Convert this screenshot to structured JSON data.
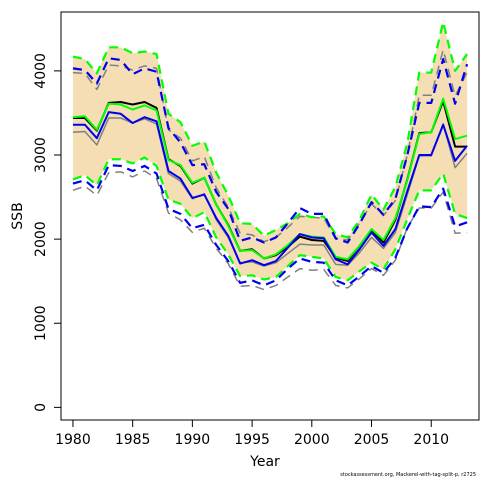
{
  "chart_data": {
    "type": "line",
    "title": "",
    "xlabel": "Year",
    "ylabel": "SSB",
    "xlim": [
      1979,
      2014
    ],
    "ylim": [
      -150,
      4700
    ],
    "xticks": [
      1980,
      1985,
      1990,
      1995,
      2000,
      2005,
      2010
    ],
    "yticks": [
      0,
      1000,
      2000,
      3000,
      4000
    ],
    "x": [
      1980,
      1981,
      1982,
      1983,
      1984,
      1985,
      1986,
      1987,
      1988,
      1989,
      1990,
      1991,
      1992,
      1993,
      1994,
      1995,
      1996,
      1997,
      1998,
      1999,
      2000,
      2001,
      2002,
      2003,
      2004,
      2005,
      2006,
      2007,
      2008,
      2009,
      2010,
      2011,
      2012,
      2013
    ],
    "band": {
      "color": "#f5deb3",
      "lower": [
        2710,
        2760,
        2640,
        2950,
        2950,
        2900,
        2970,
        2870,
        2470,
        2420,
        2250,
        2320,
        2020,
        1820,
        1560,
        1570,
        1520,
        1550,
        1680,
        1810,
        1790,
        1770,
        1550,
        1510,
        1620,
        1720,
        1640,
        1880,
        2240,
        2580,
        2580,
        2780,
        2300,
        2250
      ],
      "upper": [
        4170,
        4140,
        3970,
        4280,
        4280,
        4210,
        4230,
        4200,
        3490,
        3390,
        3110,
        3160,
        2790,
        2520,
        2190,
        2180,
        2040,
        2110,
        2190,
        2300,
        2260,
        2270,
        2060,
        2020,
        2230,
        2530,
        2350,
        2620,
        3140,
        3980,
        3980,
        4580,
        4000,
        4200
      ]
    },
    "series": [
      {
        "color": "#808080",
        "width": 1.5,
        "dash": false,
        "values": [
          3270,
          3280,
          3120,
          3440,
          3440,
          3380,
          3430,
          3370,
          2780,
          2690,
          2480,
          2540,
          2230,
          2020,
          1720,
          1730,
          1680,
          1720,
          1830,
          1940,
          1930,
          1930,
          1700,
          1690,
          1840,
          2020,
          1890,
          2080,
          2530,
          2990,
          2990,
          3370,
          2850,
          3020
        ]
      },
      {
        "color": "#808080",
        "width": 1.5,
        "dash": true,
        "values": [
          2580,
          2630,
          2520,
          2790,
          2800,
          2740,
          2810,
          2720,
          2310,
          2230,
          2080,
          2130,
          1890,
          1710,
          1440,
          1450,
          1400,
          1450,
          1550,
          1650,
          1630,
          1640,
          1450,
          1420,
          1530,
          1650,
          1570,
          1750,
          2140,
          2370,
          2370,
          2560,
          2070,
          2080
        ]
      },
      {
        "color": "#808080",
        "width": 1.5,
        "dash": true,
        "values": [
          3980,
          3970,
          3780,
          4070,
          4060,
          4010,
          4060,
          4030,
          3300,
          3200,
          2930,
          2980,
          2610,
          2380,
          2070,
          2050,
          1970,
          2020,
          2140,
          2270,
          2260,
          2250,
          2000,
          1990,
          2190,
          2420,
          2280,
          2460,
          3000,
          3710,
          3710,
          4250,
          3700,
          3980
        ]
      },
      {
        "color": "#000000",
        "width": 2,
        "dash": false,
        "values": [
          3440,
          3440,
          3290,
          3620,
          3630,
          3600,
          3630,
          3560,
          2950,
          2870,
          2660,
          2730,
          2410,
          2170,
          1860,
          1880,
          1770,
          1810,
          1910,
          2030,
          1990,
          1980,
          1780,
          1740,
          1920,
          2110,
          1960,
          2230,
          2710,
          3260,
          3270,
          3640,
          3100,
          3100
        ]
      },
      {
        "color": "#00ff00",
        "width": 2,
        "dash": false,
        "values": [
          3450,
          3460,
          3300,
          3610,
          3600,
          3540,
          3590,
          3530,
          2940,
          2880,
          2670,
          2730,
          2410,
          2160,
          1860,
          1870,
          1770,
          1820,
          1930,
          2060,
          2030,
          2020,
          1790,
          1760,
          1920,
          2120,
          1990,
          2250,
          2700,
          3250,
          3270,
          3670,
          3190,
          3230
        ]
      },
      {
        "color": "#00ff00",
        "width": 2.2,
        "dash": true,
        "values": [
          2710,
          2760,
          2640,
          2950,
          2950,
          2900,
          2970,
          2870,
          2470,
          2420,
          2250,
          2320,
          2020,
          1820,
          1560,
          1570,
          1520,
          1550,
          1680,
          1810,
          1790,
          1770,
          1550,
          1510,
          1620,
          1720,
          1640,
          1880,
          2240,
          2580,
          2580,
          2780,
          2300,
          2250
        ]
      },
      {
        "color": "#00ff00",
        "width": 2.2,
        "dash": true,
        "values": [
          4170,
          4140,
          3970,
          4280,
          4280,
          4210,
          4230,
          4200,
          3490,
          3390,
          3110,
          3160,
          2790,
          2520,
          2190,
          2180,
          2040,
          2110,
          2190,
          2300,
          2260,
          2270,
          2060,
          2020,
          2230,
          2530,
          2350,
          2620,
          3140,
          3980,
          3980,
          4580,
          4000,
          4200
        ]
      },
      {
        "color": "#0000ee",
        "width": 2,
        "dash": false,
        "values": [
          3360,
          3360,
          3200,
          3510,
          3490,
          3380,
          3450,
          3400,
          2810,
          2720,
          2490,
          2530,
          2250,
          2040,
          1710,
          1750,
          1690,
          1740,
          1900,
          2060,
          2020,
          2010,
          1760,
          1700,
          1880,
          2080,
          1920,
          2120,
          2570,
          3000,
          3000,
          3360,
          2930,
          3110
        ]
      },
      {
        "color": "#0000ee",
        "width": 2.2,
        "dash": true,
        "values": [
          2660,
          2700,
          2580,
          2880,
          2870,
          2810,
          2870,
          2780,
          2360,
          2300,
          2130,
          2170,
          1930,
          1740,
          1480,
          1510,
          1450,
          1510,
          1650,
          1770,
          1730,
          1720,
          1510,
          1450,
          1560,
          1680,
          1600,
          1780,
          2130,
          2390,
          2380,
          2600,
          2150,
          2200
        ]
      },
      {
        "color": "#0000ee",
        "width": 2.2,
        "dash": true,
        "values": [
          4030,
          4010,
          3850,
          4150,
          4130,
          3960,
          4030,
          3990,
          3320,
          3150,
          2880,
          2890,
          2560,
          2360,
          1980,
          2020,
          1960,
          2020,
          2190,
          2370,
          2300,
          2300,
          2010,
          1960,
          2180,
          2440,
          2290,
          2480,
          3000,
          3620,
          3620,
          4140,
          3610,
          4080
        ]
      }
    ]
  },
  "footer_text": "stockassessment.org, Mackerel-with-tag-split-p, r2725"
}
